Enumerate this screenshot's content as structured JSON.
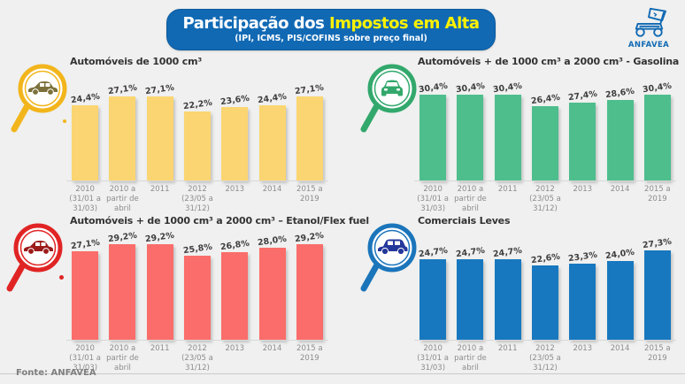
{
  "header": {
    "title_white": "Participação dos",
    "title_yellow": " Impostos em Alta",
    "subtitle": "(IPI, ICMS, PIS/COFINS sobre preço final)",
    "banner_color": "#1169B4",
    "title_highlight_color": "#FFF100",
    "logo_text": "ANFAVEA",
    "logo_color": "#1169B4"
  },
  "chart_data": {
    "type": "bar",
    "unit": "%",
    "ylim": [
      0,
      32
    ],
    "grid": false,
    "legend": "none",
    "categories": [
      "2010 (31/01 a 31/03)",
      "2010 a partir de abril",
      "2011",
      "2012 (23/05 a 31/12)",
      "2013",
      "2014",
      "2015 a 2019"
    ],
    "categories_lines": [
      [
        "2010",
        "(31/01 a",
        "31/03)"
      ],
      [
        "2010 a",
        "partir de",
        "abril"
      ],
      [
        "2011"
      ],
      [
        "2012",
        "(23/05 a",
        "31/12)"
      ],
      [
        "2013"
      ],
      [
        "2014"
      ],
      [
        "2015  a",
        "2019"
      ]
    ],
    "charts": [
      {
        "title": "Automóveis de 1000 cm³",
        "icon": "car-sedan-side-icon",
        "color": "#FBD571",
        "ring_color": "#F2B51C",
        "car_color": "#7C713B",
        "values": [
          24.4,
          27.1,
          27.1,
          22.2,
          23.6,
          24.4,
          27.1
        ],
        "labels": [
          "24,4%",
          "27,1%",
          "27,1%",
          "22,2%",
          "23,6%",
          "24,4%",
          "27,1%"
        ]
      },
      {
        "title": "Automóveis + de 1000 cm³ a 2000 cm³ - Gasolina",
        "icon": "car-front-icon",
        "color": "#4EBE8D",
        "ring_color": "#33A86C",
        "car_color": "#33A86C",
        "values": [
          30.4,
          30.4,
          30.4,
          26.4,
          27.4,
          28.6,
          30.4
        ],
        "labels": [
          "30,4%",
          "30,4%",
          "30,4%",
          "26,4%",
          "27,4%",
          "28,6%",
          "30,4%"
        ]
      },
      {
        "title": "Automóveis + de 1000 cm³ a 2000 cm³ – Etanol/Flex fuel",
        "icon": "car-sedan-side-icon",
        "color": "#FA6D6A",
        "ring_color": "#E02424",
        "car_color": "#9B1B1B",
        "values": [
          27.1,
          29.2,
          29.2,
          25.8,
          26.8,
          28.0,
          29.2
        ],
        "labels": [
          "27,1%",
          "29,2%",
          "29,2%",
          "25,8%",
          "26,8%",
          "28,0%",
          "29,2%"
        ]
      },
      {
        "title": "Comerciais Leves",
        "icon": "car-suv-side-icon",
        "color": "#1878BF",
        "ring_color": "#1B75BB",
        "car_color": "#24389B",
        "values": [
          24.7,
          24.7,
          24.7,
          22.6,
          23.3,
          24.0,
          27.3
        ],
        "labels": [
          "24,7%",
          "24,7%",
          "24,7%",
          "22,6%",
          "23,3%",
          "24,0%",
          "27,3%"
        ]
      }
    ]
  },
  "footer": {
    "source": "Fonte: ANFAVEA"
  }
}
